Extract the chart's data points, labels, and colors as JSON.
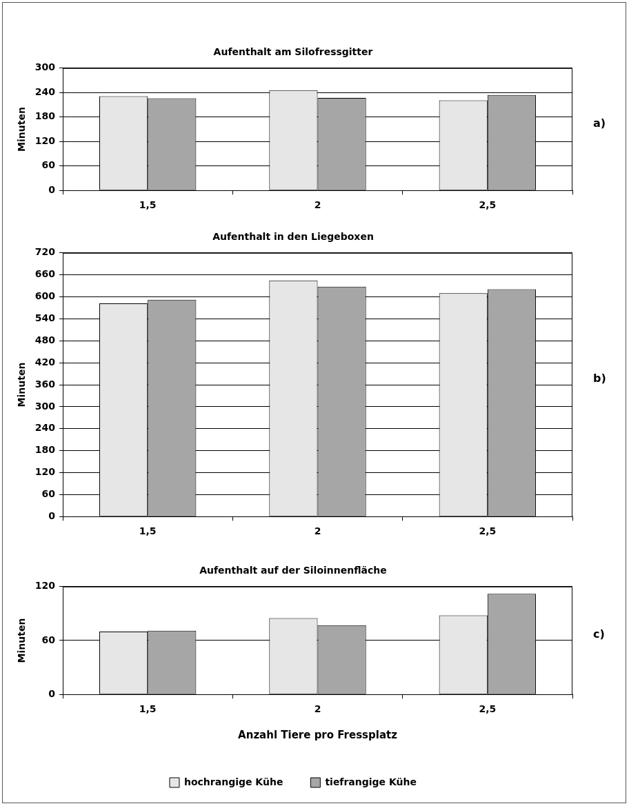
{
  "chart_data": [
    {
      "type": "bar",
      "title": "Aufenthalt am Silofressgitter",
      "ylabel": "Minuten",
      "categories": [
        "1,5",
        "2",
        "2,5"
      ],
      "series": [
        {
          "color": "#e6e6e6",
          "values": [
            231,
            246,
            221
          ]
        },
        {
          "color": "#a6a6a6",
          "values": [
            226,
            227,
            234
          ]
        }
      ],
      "ylim": [
        0,
        300
      ],
      "yticks": [
        0,
        60,
        120,
        180,
        240,
        300
      ],
      "grid": "y",
      "legend": false,
      "annotations": [
        "a)"
      ]
    },
    {
      "type": "bar",
      "title": "Aufenthalt in den Liegeboxen",
      "ylabel": "Minuten",
      "categories": [
        "1,5",
        "2",
        "2,5"
      ],
      "series": [
        {
          "color": "#e6e6e6",
          "values": [
            582,
            645,
            610
          ]
        },
        {
          "color": "#a6a6a6",
          "values": [
            592,
            628,
            621
          ]
        }
      ],
      "ylim": [
        0,
        720
      ],
      "yticks": [
        0,
        60,
        120,
        180,
        240,
        300,
        360,
        420,
        480,
        540,
        600,
        660,
        720
      ],
      "grid": "y",
      "legend": false,
      "annotations": [
        "b)"
      ]
    },
    {
      "type": "bar",
      "title": "Aufenthalt auf der Siloinnenfläche",
      "xlabel": "Anzahl Tiere pro Fressplatz",
      "ylabel": "Minuten",
      "categories": [
        "1,5",
        "2",
        "2,5"
      ],
      "series": [
        {
          "name": "hochrangige Kühe",
          "color": "#e6e6e6",
          "values": [
            70,
            85,
            88
          ]
        },
        {
          "name": "tiefrangige Kühe",
          "color": "#a6a6a6",
          "values": [
            71,
            77,
            112
          ]
        }
      ],
      "ylim": [
        0,
        120
      ],
      "yticks": [
        0,
        60,
        120
      ],
      "grid": "y",
      "legend": "bottom",
      "annotations": [
        "c)"
      ]
    }
  ]
}
